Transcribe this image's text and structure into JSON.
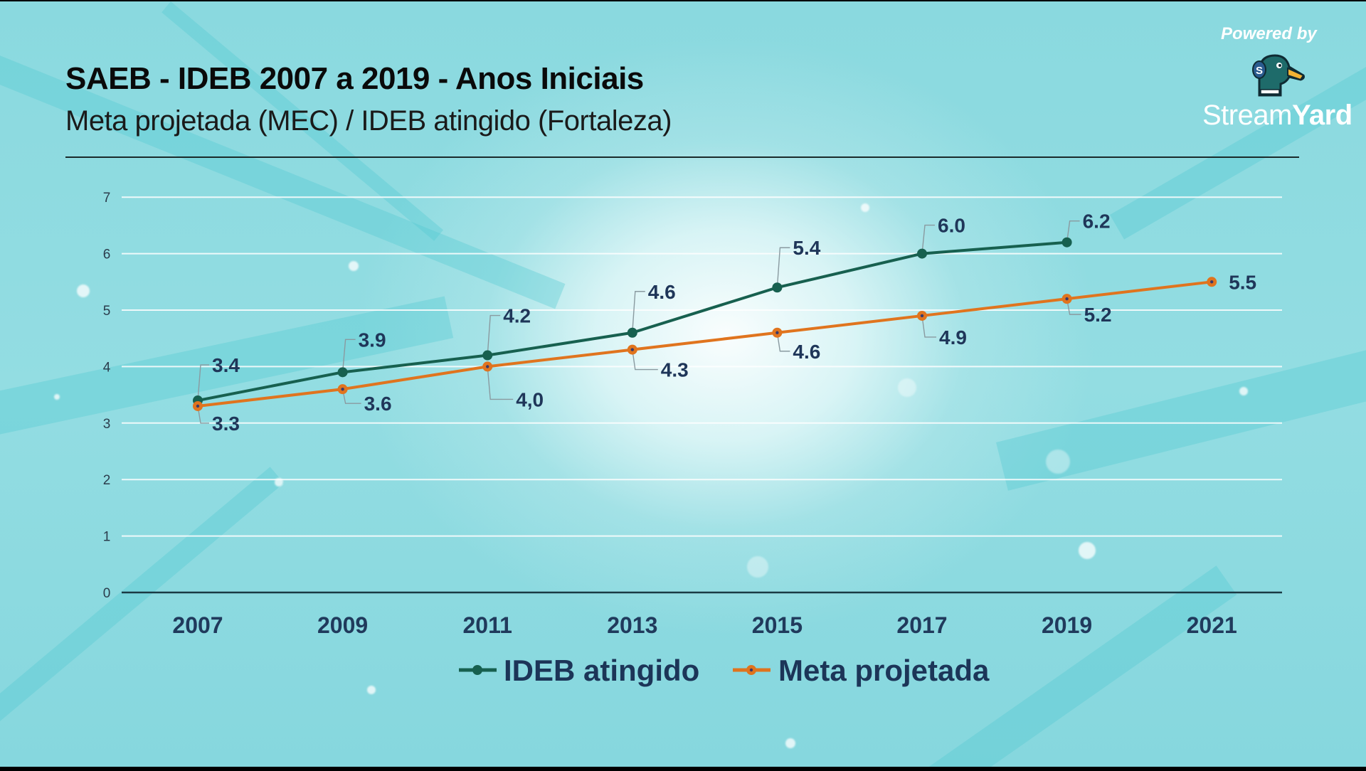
{
  "header": {
    "title": "SAEB - IDEB 2007 a 2019 - Anos Iniciais",
    "subtitle": "Meta projetada (MEC) / IDEB atingido (Fortaleza)"
  },
  "branding": {
    "powered_by": "Powered by",
    "brand_light": "Stream",
    "brand_bold": "Yard",
    "logo_icon": "duck-logo-icon"
  },
  "colors": {
    "ideb": "#17604f",
    "meta": "#e0741e",
    "label": "#1f3659",
    "grid": "#ffffff",
    "axis": "#1a3a44"
  },
  "chart_data": {
    "type": "line",
    "title": "SAEB - IDEB 2007 a 2019 - Anos Iniciais",
    "subtitle": "Meta projetada (MEC) / IDEB atingido (Fortaleza)",
    "xlabel": "",
    "ylabel": "",
    "categories": [
      "2007",
      "2009",
      "2011",
      "2013",
      "2015",
      "2017",
      "2019",
      "2021"
    ],
    "ylim": [
      0,
      7
    ],
    "yticks": [
      "0",
      "1",
      "2",
      "3",
      "4",
      "5",
      "6",
      "7"
    ],
    "grid": true,
    "legend_position": "bottom-center",
    "series": [
      {
        "name": "IDEB atingido",
        "values": [
          3.4,
          3.9,
          4.2,
          4.6,
          5.4,
          6.0,
          6.2,
          null
        ],
        "labels": [
          "3.4",
          "3.9",
          "4.2",
          "4.6",
          "5.4",
          "6.0",
          "6.2",
          null
        ]
      },
      {
        "name": "Meta projetada",
        "values": [
          3.3,
          3.6,
          4.0,
          4.3,
          4.6,
          4.9,
          5.2,
          5.5
        ],
        "labels": [
          "3.3",
          "3.6",
          "4,0",
          "4.3",
          "4.6",
          "4.9",
          "5.2",
          "5.5"
        ]
      }
    ]
  }
}
